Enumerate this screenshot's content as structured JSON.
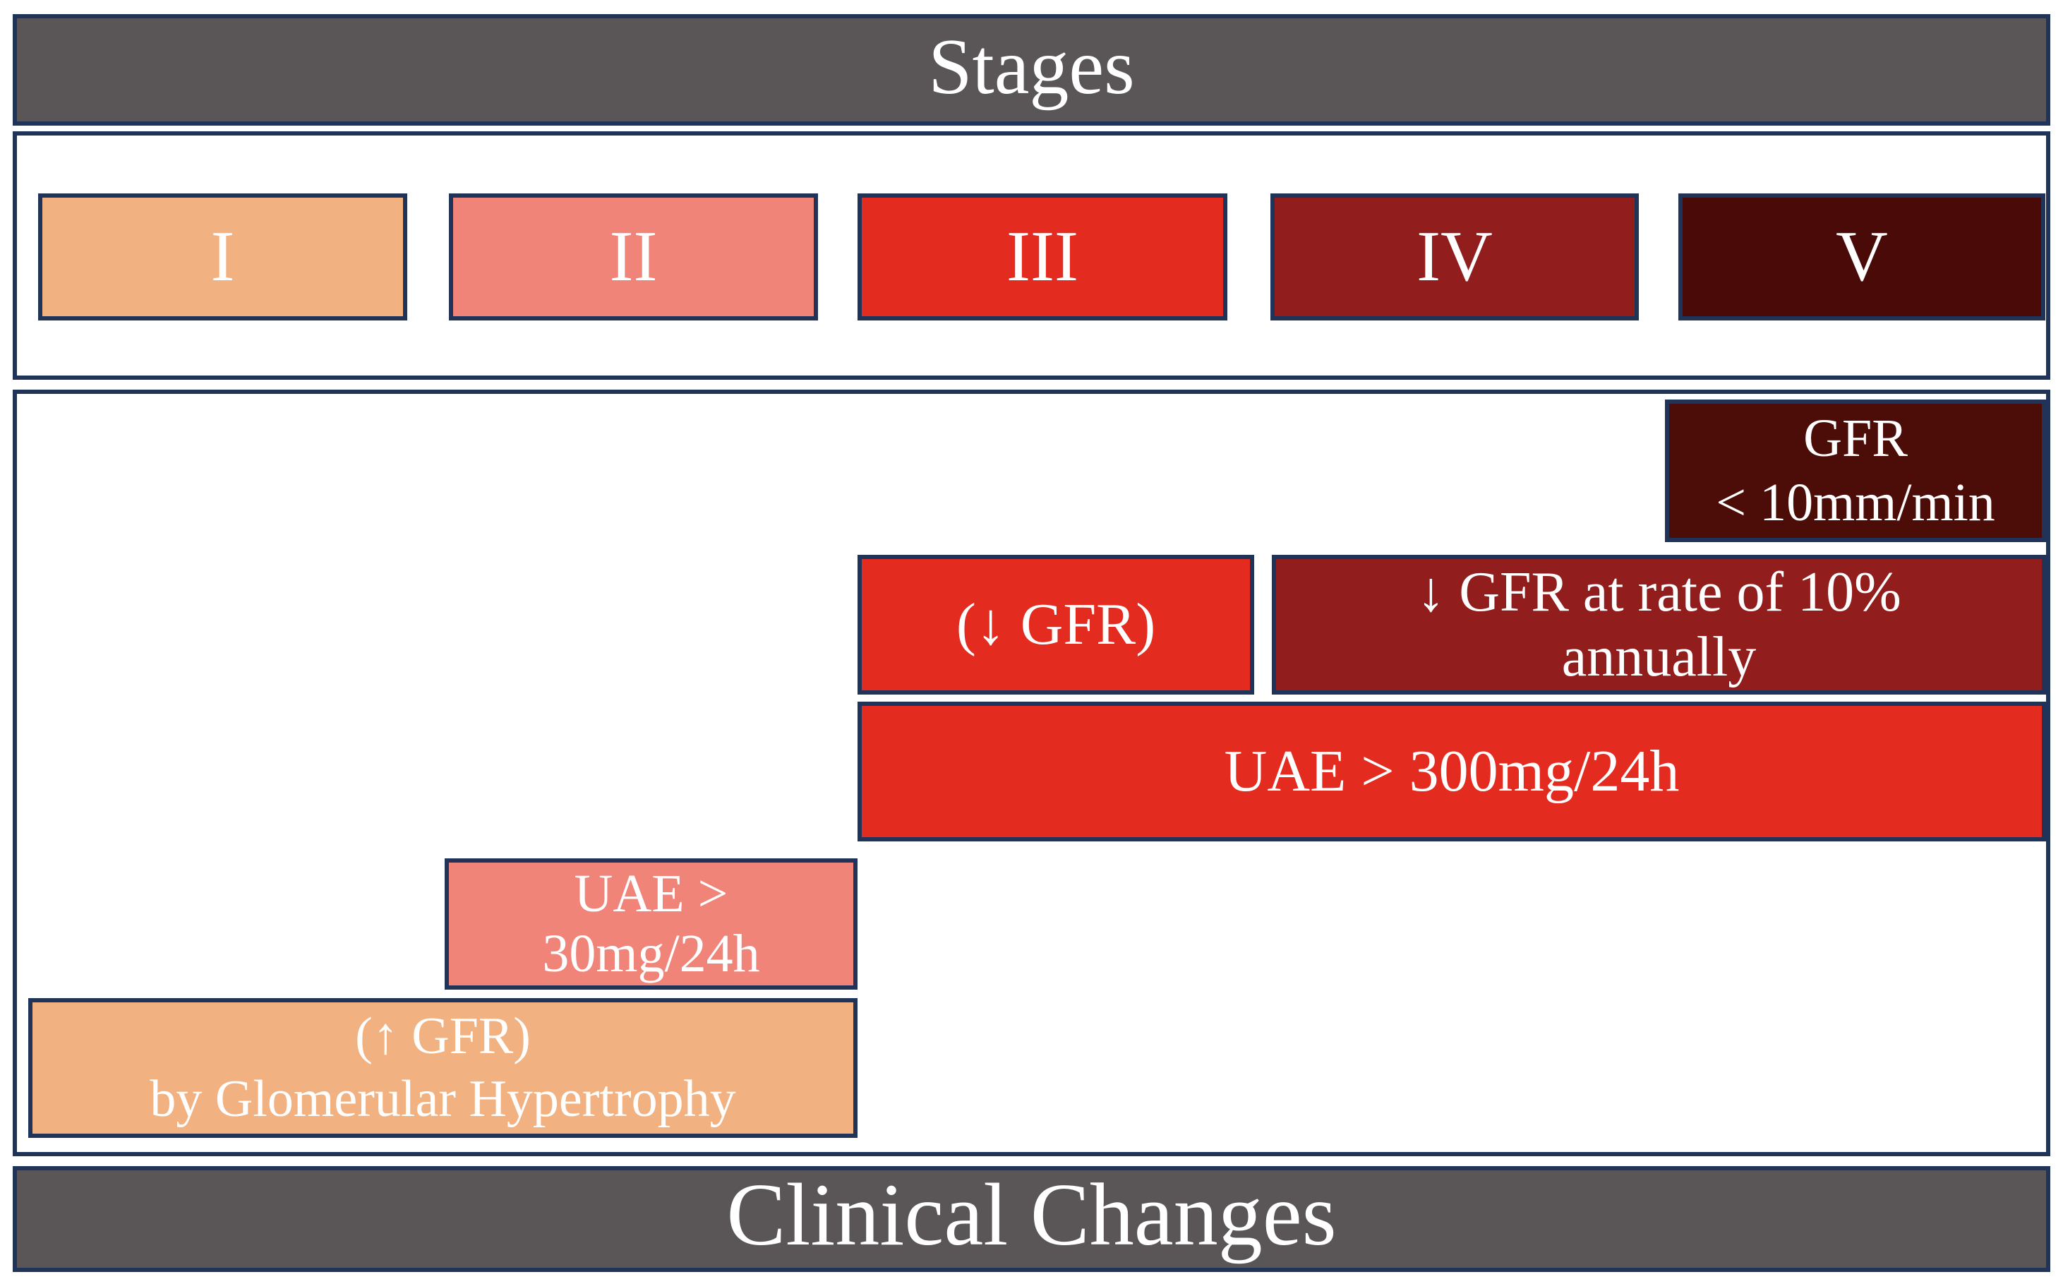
{
  "palette": {
    "border_navy": "#1F3458",
    "band_gray": "#5A5658",
    "stage_i_orange": "#F2B180",
    "stage_ii_salmon": "#F08478",
    "stage_iii_red": "#E32B20",
    "stage_iv_dark_red": "#911E1C",
    "stage_v_maroon": "#4A0A07",
    "gfr_v_box_maroon": "#4C0D09",
    "text_white": "#FFFFFF",
    "background_white": "#FFFFFF"
  },
  "header": {
    "title": "Stages"
  },
  "footer": {
    "title": "Clinical Changes"
  },
  "stages": [
    {
      "numeral": "I",
      "color": "#F2B180"
    },
    {
      "numeral": "II",
      "color": "#F08478"
    },
    {
      "numeral": "III",
      "color": "#E32B20"
    },
    {
      "numeral": "IV",
      "color": "#911E1C"
    },
    {
      "numeral": "V",
      "color": "#4A0A07"
    }
  ],
  "clinical_changes": {
    "stage_v_gfr": {
      "line1": "GFR",
      "line2": "< 10mm/min",
      "color": "#4C0D09"
    },
    "stage_iii_gfr": {
      "label": "(↓ GFR)",
      "color": "#E32B20"
    },
    "stage_iv_gfr": {
      "line1": "↓ GFR at rate of 10%",
      "line2": "annually",
      "color": "#911E1C"
    },
    "uae_300": {
      "label": "UAE > 300mg/24h",
      "color": "#E32B20"
    },
    "uae_30": {
      "line1": "UAE >",
      "line2": "30mg/24h",
      "color": "#F08478"
    },
    "gfr_hypertrophy": {
      "line1": "(↑ GFR)",
      "line2": "by Glomerular Hypertrophy",
      "color": "#F2B180"
    }
  }
}
